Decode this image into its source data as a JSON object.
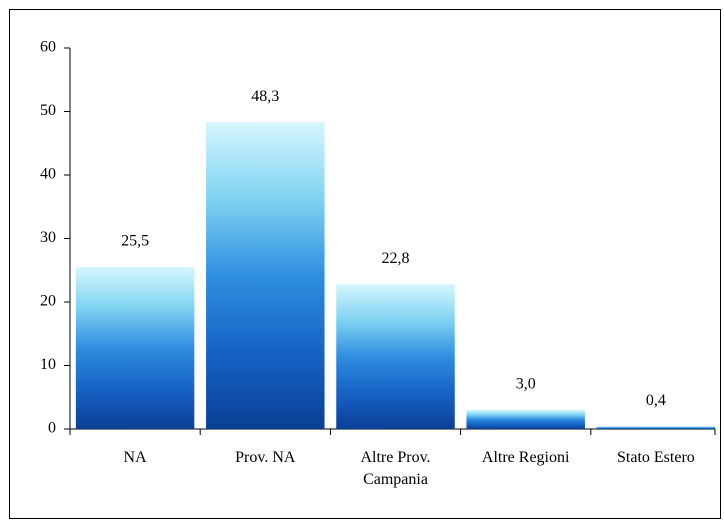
{
  "chart_data": {
    "type": "bar",
    "categories": [
      "NA",
      "Prov. NA",
      "Altre Prov. Campania",
      "Altre Regioni",
      "Stato Estero"
    ],
    "values": [
      25.5,
      48.3,
      22.8,
      3.0,
      0.4
    ],
    "value_labels": [
      "25,5",
      "48,3",
      "22,8",
      "3,0",
      "0,4"
    ],
    "ylim": [
      0,
      60
    ],
    "yticks": [
      0,
      10,
      20,
      30,
      40,
      50,
      60
    ],
    "grid": false
  }
}
